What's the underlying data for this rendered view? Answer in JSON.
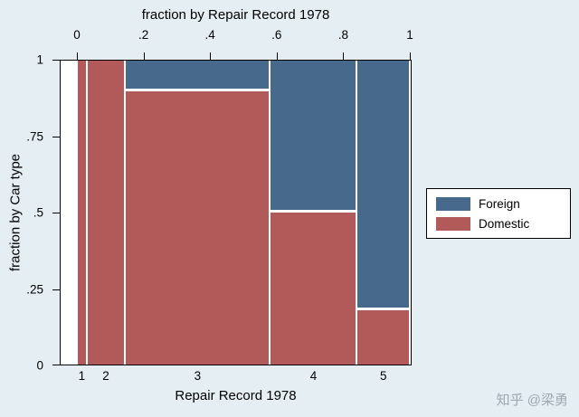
{
  "figure": {
    "background": "#e4eef3",
    "plot_background": "#ffffff",
    "axis_color": "#000000"
  },
  "watermark": {
    "text": "知乎 @梁勇",
    "color": "#9da8b0"
  },
  "chart_data": {
    "type": "spineplot",
    "title": "fraction by Repair Record 1978",
    "top_axis": {
      "title": "fraction by Repair Record 1978",
      "range": [
        0,
        1
      ],
      "ticks": [
        {
          "label": "0",
          "pos": 0
        },
        {
          "label": ".2",
          "pos": 0.2
        },
        {
          "label": ".4",
          "pos": 0.4
        },
        {
          "label": ".6",
          "pos": 0.6
        },
        {
          "label": ".8",
          "pos": 0.8
        },
        {
          "label": "1",
          "pos": 1
        }
      ]
    },
    "y_axis": {
      "title": "fraction by Car type",
      "range": [
        0,
        1
      ],
      "ticks": [
        {
          "label": "0",
          "pos": 0
        },
        {
          "label": ".25",
          "pos": 0.25
        },
        {
          "label": ".5",
          "pos": 0.5
        },
        {
          "label": ".75",
          "pos": 0.75
        },
        {
          "label": "1",
          "pos": 1
        }
      ]
    },
    "x_axis": {
      "title": "Repair Record 1978",
      "categories": [
        "1",
        "2",
        "3",
        "4",
        "5"
      ]
    },
    "series": [
      {
        "name": "Foreign",
        "color": "#46698c"
      },
      {
        "name": "Domestic",
        "color": "#b25a5a"
      }
    ],
    "bars": [
      {
        "category": "1",
        "x_start": 0.0,
        "x_end": 0.029,
        "foreign": 0.0,
        "domestic": 1.0
      },
      {
        "category": "2",
        "x_start": 0.029,
        "x_end": 0.145,
        "foreign": 0.0,
        "domestic": 1.0
      },
      {
        "category": "3",
        "x_start": 0.145,
        "x_end": 0.58,
        "foreign": 0.1,
        "domestic": 0.9
      },
      {
        "category": "4",
        "x_start": 0.58,
        "x_end": 0.841,
        "foreign": 0.5,
        "domestic": 0.5
      },
      {
        "category": "5",
        "x_start": 0.841,
        "x_end": 1.0,
        "foreign": 0.82,
        "domestic": 0.18
      }
    ],
    "legend": {
      "position": "right",
      "items": [
        {
          "label": "Foreign",
          "color": "#46698c"
        },
        {
          "label": "Domestic",
          "color": "#b25a5a"
        }
      ]
    }
  }
}
